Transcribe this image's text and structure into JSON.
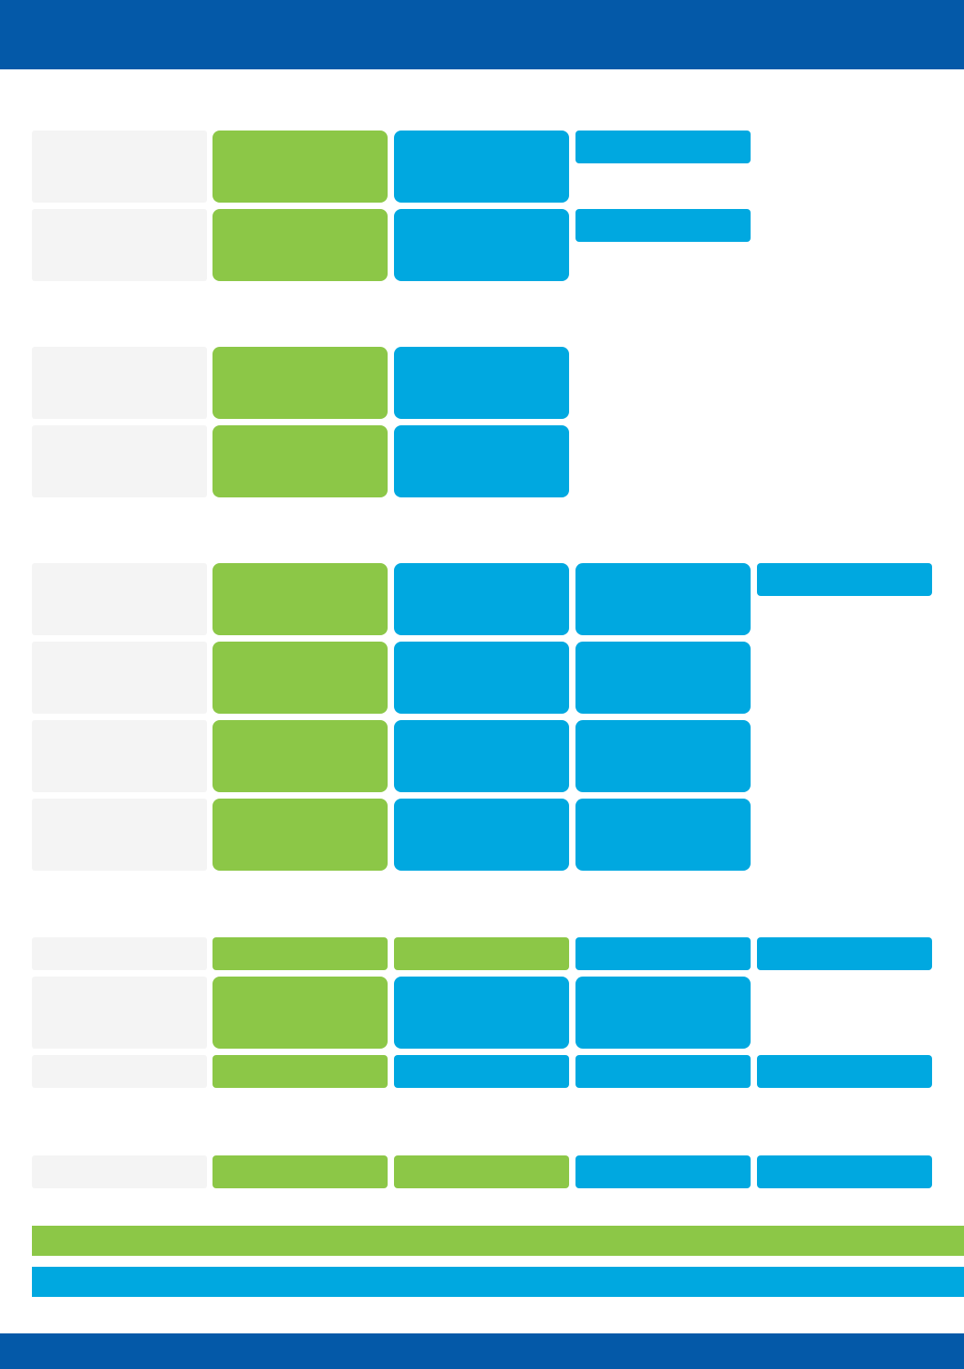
{
  "colors": {
    "header": "#0459a8",
    "label_cell": "#f4f4f4",
    "green": "#8cc747",
    "blue": "#00a8e0",
    "background": "#ffffff"
  },
  "header": {
    "title": ""
  },
  "footer": {
    "text": ""
  },
  "sections": [
    {
      "rows": [
        {
          "label": "",
          "cells": [
            {
              "color": "green",
              "text": ""
            },
            {
              "color": "blue",
              "text": ""
            }
          ],
          "side_tag": {
            "color": "blue",
            "text": ""
          }
        },
        {
          "label": "",
          "cells": [
            {
              "color": "green",
              "text": ""
            },
            {
              "color": "blue",
              "text": ""
            }
          ],
          "side_tag": {
            "color": "blue",
            "text": ""
          }
        }
      ]
    },
    {
      "rows": [
        {
          "label": "",
          "cells": [
            {
              "color": "green",
              "text": ""
            },
            {
              "color": "blue",
              "text": ""
            }
          ]
        },
        {
          "label": "",
          "cells": [
            {
              "color": "green",
              "text": ""
            },
            {
              "color": "blue",
              "text": ""
            }
          ]
        }
      ]
    },
    {
      "rows": [
        {
          "label": "",
          "cells": [
            {
              "color": "green",
              "text": ""
            },
            {
              "color": "blue",
              "text": ""
            },
            {
              "color": "blue",
              "text": ""
            }
          ],
          "side_tag": {
            "color": "blue",
            "text": ""
          }
        },
        {
          "label": "",
          "cells": [
            {
              "color": "green",
              "text": ""
            },
            {
              "color": "blue",
              "text": ""
            },
            {
              "color": "blue",
              "text": ""
            }
          ]
        },
        {
          "label": "",
          "cells": [
            {
              "color": "green",
              "text": ""
            },
            {
              "color": "blue",
              "text": ""
            },
            {
              "color": "blue",
              "text": ""
            }
          ]
        },
        {
          "label": "",
          "cells": [
            {
              "color": "green",
              "text": ""
            },
            {
              "color": "blue",
              "text": ""
            },
            {
              "color": "blue",
              "text": ""
            }
          ]
        }
      ]
    },
    {
      "rows": [
        {
          "label": "",
          "cells": [
            {
              "color": "green",
              "text": ""
            },
            {
              "color": "green",
              "text": ""
            },
            {
              "color": "blue",
              "text": ""
            },
            {
              "color": "blue",
              "text": ""
            }
          ]
        },
        {
          "label": "",
          "cells": [
            {
              "color": "green",
              "text": ""
            },
            {
              "color": "blue",
              "text": ""
            },
            {
              "color": "blue",
              "text": ""
            }
          ]
        },
        {
          "label": "",
          "cells": [
            {
              "color": "green",
              "text": ""
            },
            {
              "color": "blue",
              "text": ""
            },
            {
              "color": "blue",
              "text": ""
            },
            {
              "color": "blue",
              "text": ""
            }
          ]
        }
      ]
    },
    {
      "rows": [
        {
          "label": "",
          "cells": [
            {
              "color": "green",
              "text": ""
            },
            {
              "color": "green",
              "text": ""
            },
            {
              "color": "blue",
              "text": ""
            },
            {
              "color": "blue",
              "text": ""
            }
          ]
        }
      ]
    }
  ],
  "legend": [
    {
      "color": "green",
      "text": ""
    },
    {
      "color": "blue",
      "text": ""
    }
  ]
}
